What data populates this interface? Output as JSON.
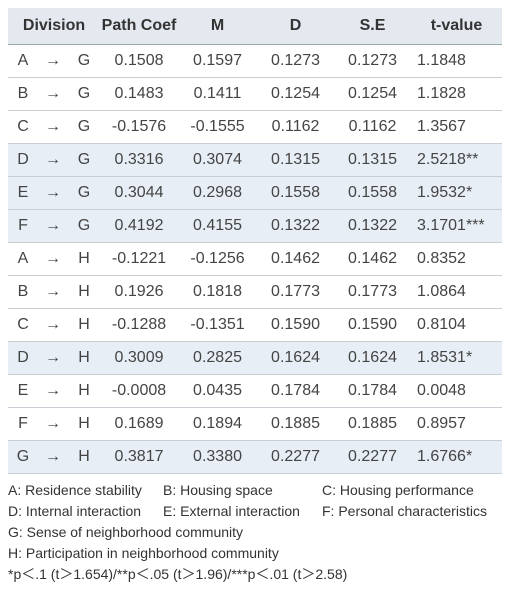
{
  "table": {
    "header": [
      "Division",
      "Path Coef",
      "M",
      "D",
      "S.E",
      "t-value"
    ],
    "rows": [
      [
        "A",
        "→",
        "G",
        "0.1508",
        "0.1597",
        "0.1273",
        "0.1273",
        "1.1848"
      ],
      [
        "B",
        "→",
        "G",
        "0.1483",
        "0.1411",
        "0.1254",
        "0.1254",
        "1.1828"
      ],
      [
        "C",
        "→",
        "G",
        "-0.1576",
        "-0.1555",
        "0.1162",
        "0.1162",
        "1.3567"
      ],
      [
        "D",
        "→",
        "G",
        "0.3316",
        "0.3074",
        "0.1315",
        "0.1315",
        "2.5218**"
      ],
      [
        "E",
        "→",
        "G",
        "0.3044",
        "0.2968",
        "0.1558",
        "0.1558",
        "1.9532*"
      ],
      [
        "F",
        "→",
        "G",
        "0.4192",
        "0.4155",
        "0.1322",
        "0.1322",
        "3.1701***"
      ],
      [
        "A",
        "→",
        "H",
        "-0.1221",
        "-0.1256",
        "0.1462",
        "0.1462",
        "0.8352"
      ],
      [
        "B",
        "→",
        "H",
        "0.1926",
        "0.1818",
        "0.1773",
        "0.1773",
        "1.0864"
      ],
      [
        "C",
        "→",
        "H",
        "-0.1288",
        "-0.1351",
        "0.1590",
        "0.1590",
        "0.8104"
      ],
      [
        "D",
        "→",
        "H",
        "0.3009",
        "0.2825",
        "0.1624",
        "0.1624",
        "1.8531*"
      ],
      [
        "E",
        "→",
        "H",
        "-0.0008",
        "0.0435",
        "0.1784",
        "0.1784",
        "0.0048"
      ],
      [
        "F",
        "→",
        "H",
        "0.1689",
        "0.1894",
        "0.1885",
        "0.1885",
        "0.8957"
      ],
      [
        "G",
        "→",
        "H",
        "0.3817",
        "0.3380",
        "0.2277",
        "0.2277",
        "1.6766*"
      ]
    ],
    "highlighted_rows": [
      3,
      4,
      5,
      9,
      12
    ]
  },
  "notes": {
    "legend": [
      [
        "A: Residence stability",
        "B: Housing space",
        "C: Housing performance"
      ],
      [
        "D: Internal interaction",
        "E: External interaction",
        "F: Personal characteristics"
      ]
    ],
    "lines": [
      "G: Sense of neighborhood community",
      "H: Participation in neighborhood community",
      "*p＜.1 (t＞1.654)/**p＜.05 (t＞1.96)/***p＜.01 (t＞2.58)"
    ]
  }
}
